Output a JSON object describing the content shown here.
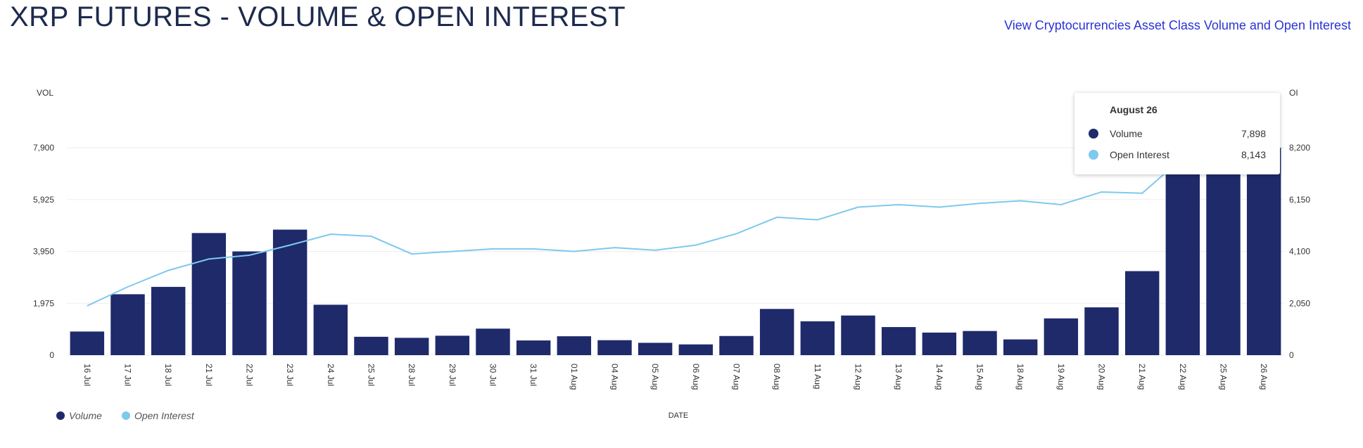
{
  "title": "XRP FUTURES - VOLUME & OPEN INTEREST",
  "link_text": "View Cryptocurrencies Asset Class Volume and Open Interest",
  "colors": {
    "volume": "#1e2a6a",
    "open_interest": "#7fc8ee",
    "grid": "#ededed",
    "title": "#1d2a4d",
    "link": "#2b33d4"
  },
  "tooltip": {
    "date": "August 26",
    "rows": [
      {
        "label": "Volume",
        "value": "7,898"
      },
      {
        "label": "Open Interest",
        "value": "8,143"
      }
    ]
  },
  "legend": [
    {
      "label": "Volume",
      "icon": "volume-legend-dot"
    },
    {
      "label": "Open Interest",
      "icon": "open-interest-legend-dot"
    }
  ],
  "chart_data": {
    "type": "bar",
    "title": "XRP FUTURES - VOLUME & OPEN INTEREST",
    "xlabel": "DATE",
    "ylabel_left": "VOL",
    "ylabel_right": "OI",
    "categories": [
      "16 Jul",
      "17 Jul",
      "18 Jul",
      "21 Jul",
      "22 Jul",
      "23 Jul",
      "24 Jul",
      "25 Jul",
      "28 Jul",
      "29 Jul",
      "30 Jul",
      "31 Jul",
      "01 Aug",
      "04 Aug",
      "05 Aug",
      "06 Aug",
      "07 Aug",
      "08 Aug",
      "11 Aug",
      "12 Aug",
      "13 Aug",
      "14 Aug",
      "15 Aug",
      "18 Aug",
      "19 Aug",
      "20 Aug",
      "21 Aug",
      "22 Aug",
      "25 Aug",
      "26 Aug"
    ],
    "left_axis": {
      "min": 0,
      "max": 7900,
      "ticks": [
        0,
        1975,
        3950,
        5925,
        7900
      ],
      "tick_labels": [
        "0",
        "1,975",
        "3,950",
        "5,925",
        "7,900"
      ]
    },
    "right_axis": {
      "min": 0,
      "max": 8200,
      "ticks": [
        0,
        2050,
        4100,
        6150,
        8200
      ],
      "tick_labels": [
        "0",
        "2,050",
        "4,100",
        "6,150",
        "8,200"
      ]
    },
    "grid": true,
    "legend_position": "bottom-left",
    "series": [
      {
        "name": "Volume",
        "type": "bar",
        "axis": "left",
        "values": [
          900,
          2320,
          2600,
          4650,
          3950,
          4780,
          1920,
          700,
          660,
          740,
          1010,
          560,
          720,
          570,
          470,
          410,
          730,
          1760,
          1290,
          1510,
          1070,
          860,
          920,
          600,
          1400,
          1820,
          3200,
          7898,
          7898,
          7898
        ]
      },
      {
        "name": "Open Interest",
        "type": "line",
        "axis": "right",
        "values": [
          1950,
          2700,
          3350,
          3800,
          3950,
          4350,
          4780,
          4700,
          4000,
          4100,
          4200,
          4200,
          4100,
          4250,
          4150,
          4350,
          4800,
          5450,
          5350,
          5850,
          5950,
          5850,
          6000,
          6100,
          5950,
          6450,
          6400,
          7800,
          8000,
          8143
        ]
      }
    ]
  }
}
